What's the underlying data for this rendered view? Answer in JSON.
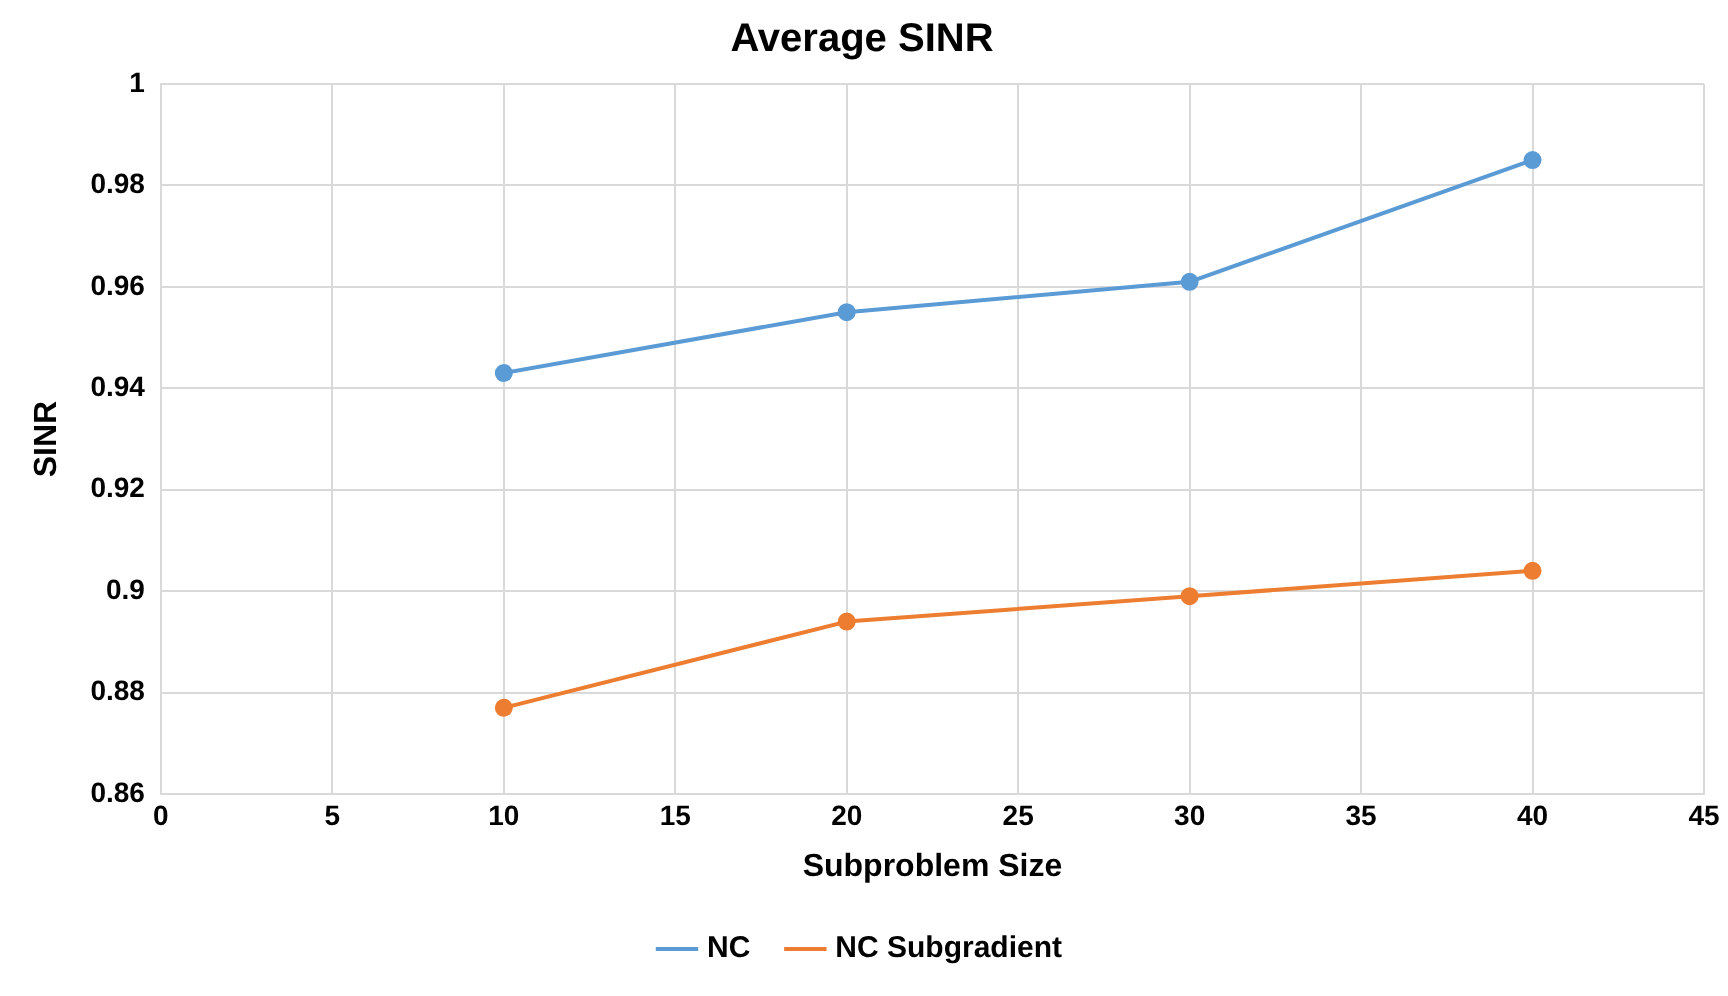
{
  "chart_data": {
    "type": "line",
    "title": "Average SINR",
    "xlabel": "Subproblem Size",
    "ylabel": "SINR",
    "x": [
      10,
      20,
      30,
      40
    ],
    "series": [
      {
        "name": "NC",
        "color": "#5b9bd5",
        "values": [
          0.943,
          0.955,
          0.961,
          0.985
        ]
      },
      {
        "name": "NC Subgradient",
        "color": "#ed7d31",
        "values": [
          0.877,
          0.894,
          0.899,
          0.904
        ]
      }
    ],
    "xlim": [
      0,
      45
    ],
    "xticks": [
      0,
      5,
      10,
      15,
      20,
      25,
      30,
      35,
      40,
      45
    ],
    "ylim": [
      0.86,
      1
    ],
    "yticks": [
      0.86,
      0.88,
      0.9,
      0.92,
      0.94,
      0.96,
      0.98,
      1
    ],
    "grid": true,
    "legend": "bottom",
    "marker": "circle",
    "line_style": "solid"
  }
}
